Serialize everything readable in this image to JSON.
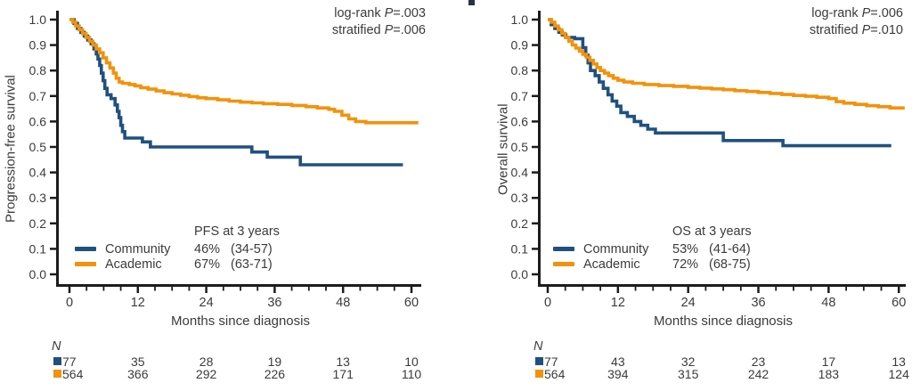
{
  "figure": {
    "background": "#ffffff",
    "axis_color": "#1c1c1c",
    "text_color": "#3b3b3b"
  },
  "chart_data": [
    {
      "type": "line",
      "subtype": "kaplan-meier-step",
      "panel": "PFS",
      "ylabel": "Progression-free survival",
      "xlabel": "Months since diagnosis",
      "ylim": [
        0.0,
        1.0
      ],
      "xlim": [
        0,
        61.5
      ],
      "yticks": [
        "1.0",
        "0.9",
        "0.8",
        "0.7",
        "0.6",
        "0.5",
        "0.4",
        "0.3",
        "0.2",
        "0.1",
        "0.0"
      ],
      "xticks": [
        0,
        12,
        24,
        36,
        48,
        60
      ],
      "x_minor_step": 3,
      "grid": false,
      "stats": [
        {
          "label": "log-rank",
          "p_symbol": "P",
          "value": "=.003"
        },
        {
          "label": "stratified",
          "p_symbol": "P",
          "value": "=.006"
        }
      ],
      "legend_title": "PFS at 3 years",
      "legend_position": "lower-center-inside",
      "risk_label": "N",
      "series": [
        {
          "name": "Community",
          "color": "#205080",
          "estimate": "46%",
          "ci": "(34-57)",
          "at_risk": [
            77,
            35,
            28,
            19,
            13,
            10
          ],
          "end_month": 58.5,
          "points": [
            [
              0,
              1.0
            ],
            [
              0.8,
              0.985
            ],
            [
              1.4,
              0.965
            ],
            [
              2.0,
              0.95
            ],
            [
              2.6,
              0.935
            ],
            [
              3.2,
              0.92
            ],
            [
              3.8,
              0.905
            ],
            [
              4.3,
              0.885
            ],
            [
              4.7,
              0.865
            ],
            [
              5.0,
              0.845
            ],
            [
              5.3,
              0.82
            ],
            [
              5.6,
              0.79
            ],
            [
              5.9,
              0.76
            ],
            [
              6.2,
              0.73
            ],
            [
              6.6,
              0.705
            ],
            [
              7.3,
              0.69
            ],
            [
              8.0,
              0.665
            ],
            [
              8.4,
              0.64
            ],
            [
              8.7,
              0.615
            ],
            [
              9.0,
              0.585
            ],
            [
              9.3,
              0.56
            ],
            [
              9.7,
              0.535
            ],
            [
              12.8,
              0.52
            ],
            [
              14.2,
              0.5
            ],
            [
              32.0,
              0.48
            ],
            [
              34.7,
              0.46
            ],
            [
              40.5,
              0.43
            ]
          ]
        },
        {
          "name": "Academic",
          "color": "#F3920A",
          "estimate": "67%",
          "ci": "(63-71)",
          "at_risk": [
            564,
            366,
            292,
            226,
            171,
            110
          ],
          "end_month": 61.2,
          "points": [
            [
              0,
              1.0
            ],
            [
              0.6,
              0.99
            ],
            [
              1.1,
              0.975
            ],
            [
              1.7,
              0.96
            ],
            [
              2.3,
              0.945
            ],
            [
              2.9,
              0.93
            ],
            [
              3.5,
              0.915
            ],
            [
              4.1,
              0.9
            ],
            [
              4.7,
              0.885
            ],
            [
              5.3,
              0.87
            ],
            [
              5.9,
              0.85
            ],
            [
              6.5,
              0.83
            ],
            [
              7.1,
              0.81
            ],
            [
              7.7,
              0.79
            ],
            [
              8.2,
              0.77
            ],
            [
              8.7,
              0.755
            ],
            [
              9.3,
              0.75
            ],
            [
              10.5,
              0.745
            ],
            [
              11.5,
              0.74
            ],
            [
              12.5,
              0.733
            ],
            [
              13.8,
              0.727
            ],
            [
              15.2,
              0.72
            ],
            [
              16.6,
              0.713
            ],
            [
              18.0,
              0.708
            ],
            [
              19.5,
              0.703
            ],
            [
              21.0,
              0.698
            ],
            [
              22.5,
              0.693
            ],
            [
              24.0,
              0.69
            ],
            [
              26.0,
              0.685
            ],
            [
              28.0,
              0.68
            ],
            [
              30.0,
              0.676
            ],
            [
              32.0,
              0.673
            ],
            [
              34.0,
              0.67
            ],
            [
              36.5,
              0.667
            ],
            [
              39.0,
              0.663
            ],
            [
              41.5,
              0.658
            ],
            [
              43.5,
              0.653
            ],
            [
              45.5,
              0.648
            ],
            [
              46.5,
              0.64
            ],
            [
              47.8,
              0.625
            ],
            [
              49.0,
              0.61
            ],
            [
              50.2,
              0.6
            ],
            [
              52.0,
              0.595
            ]
          ]
        }
      ]
    },
    {
      "type": "line",
      "subtype": "kaplan-meier-step",
      "panel": "OS",
      "ylabel": "Overall survival",
      "xlabel": "Months since diagnosis",
      "ylim": [
        0.0,
        1.0
      ],
      "xlim": [
        0,
        61.5
      ],
      "yticks": [
        "1.0",
        "0.9",
        "0.8",
        "0.7",
        "0.6",
        "0.5",
        "0.4",
        "0.3",
        "0.2",
        "0.1",
        "0.0"
      ],
      "xticks": [
        0,
        12,
        24,
        36,
        48,
        60
      ],
      "x_minor_step": 3,
      "grid": false,
      "stats": [
        {
          "label": "log-rank",
          "p_symbol": "P",
          "value": "=.006"
        },
        {
          "label": "stratified",
          "p_symbol": "P",
          "value": "=.010"
        }
      ],
      "legend_title": "OS at 3 years",
      "legend_position": "lower-center-inside",
      "risk_label": "N",
      "series": [
        {
          "name": "Community",
          "color": "#205080",
          "estimate": "53%",
          "ci": "(41-64)",
          "at_risk": [
            77,
            43,
            32,
            23,
            17,
            13
          ],
          "end_month": 58.7,
          "points": [
            [
              0,
              1.0
            ],
            [
              0.6,
              0.98
            ],
            [
              1.2,
              0.965
            ],
            [
              1.9,
              0.95
            ],
            [
              2.5,
              0.94
            ],
            [
              3.1,
              0.93
            ],
            [
              4.6,
              0.925
            ],
            [
              6.0,
              0.89
            ],
            [
              6.5,
              0.86
            ],
            [
              6.9,
              0.83
            ],
            [
              7.3,
              0.8
            ],
            [
              8.1,
              0.78
            ],
            [
              8.8,
              0.755
            ],
            [
              9.5,
              0.73
            ],
            [
              10.3,
              0.705
            ],
            [
              11.0,
              0.68
            ],
            [
              11.8,
              0.66
            ],
            [
              12.5,
              0.635
            ],
            [
              13.6,
              0.62
            ],
            [
              14.8,
              0.6
            ],
            [
              15.9,
              0.585
            ],
            [
              17.1,
              0.57
            ],
            [
              18.4,
              0.555
            ],
            [
              30.0,
              0.525
            ],
            [
              40.2,
              0.505
            ]
          ]
        },
        {
          "name": "Academic",
          "color": "#F3920A",
          "estimate": "72%",
          "ci": "(68-75)",
          "at_risk": [
            564,
            394,
            315,
            242,
            183,
            124
          ],
          "end_month": 61.0,
          "points": [
            [
              0,
              1.0
            ],
            [
              0.6,
              0.99
            ],
            [
              1.2,
              0.975
            ],
            [
              1.8,
              0.96
            ],
            [
              2.4,
              0.945
            ],
            [
              3.0,
              0.93
            ],
            [
              3.6,
              0.915
            ],
            [
              4.2,
              0.9
            ],
            [
              4.8,
              0.888
            ],
            [
              5.4,
              0.876
            ],
            [
              6.0,
              0.864
            ],
            [
              6.6,
              0.852
            ],
            [
              7.2,
              0.84
            ],
            [
              7.8,
              0.826
            ],
            [
              8.4,
              0.812
            ],
            [
              9.0,
              0.8
            ],
            [
              9.7,
              0.79
            ],
            [
              10.4,
              0.78
            ],
            [
              11.2,
              0.77
            ],
            [
              12.0,
              0.762
            ],
            [
              13.0,
              0.755
            ],
            [
              14.5,
              0.75
            ],
            [
              16.5,
              0.745
            ],
            [
              19.0,
              0.741
            ],
            [
              21.5,
              0.738
            ],
            [
              24.0,
              0.734
            ],
            [
              26.0,
              0.731
            ],
            [
              28.0,
              0.728
            ],
            [
              30.0,
              0.725
            ],
            [
              32.0,
              0.721
            ],
            [
              34.0,
              0.718
            ],
            [
              36.0,
              0.714
            ],
            [
              38.0,
              0.71
            ],
            [
              40.0,
              0.706
            ],
            [
              42.0,
              0.702
            ],
            [
              44.0,
              0.699
            ],
            [
              46.0,
              0.695
            ],
            [
              48.0,
              0.69
            ],
            [
              49.3,
              0.678
            ],
            [
              50.6,
              0.672
            ],
            [
              52.5,
              0.667
            ],
            [
              54.5,
              0.662
            ],
            [
              56.5,
              0.658
            ],
            [
              58.5,
              0.653
            ]
          ]
        }
      ]
    }
  ]
}
